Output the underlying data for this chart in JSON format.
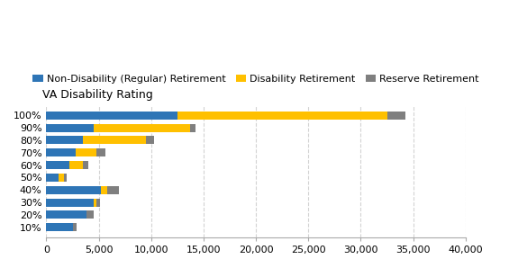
{
  "categories": [
    "100%",
    "90%",
    "80%",
    "70%",
    "60%",
    "50%",
    "40%",
    "30%",
    "20%",
    "10%"
  ],
  "non_disability": [
    12500,
    4500,
    3500,
    2800,
    2200,
    1200,
    5200,
    4500,
    3800,
    2500
  ],
  "disability": [
    20000,
    9200,
    6000,
    2000,
    1300,
    500,
    600,
    300,
    0,
    0
  ],
  "reserve": [
    1800,
    500,
    800,
    800,
    500,
    200,
    1100,
    300,
    700,
    400
  ],
  "colors": {
    "non_disability": "#2e75b6",
    "disability": "#ffc000",
    "reserve": "#7f7f7f"
  },
  "legend_labels": [
    "Non-Disability (Regular) Retirement",
    "Disability Retirement",
    "Reserve Retirement"
  ],
  "ylabel": "VA Disability Rating",
  "xlim": [
    0,
    40000
  ],
  "xticks": [
    0,
    5000,
    10000,
    15000,
    20000,
    25000,
    30000,
    35000,
    40000
  ],
  "title_fontsize": 9,
  "tick_fontsize": 8,
  "legend_fontsize": 8
}
